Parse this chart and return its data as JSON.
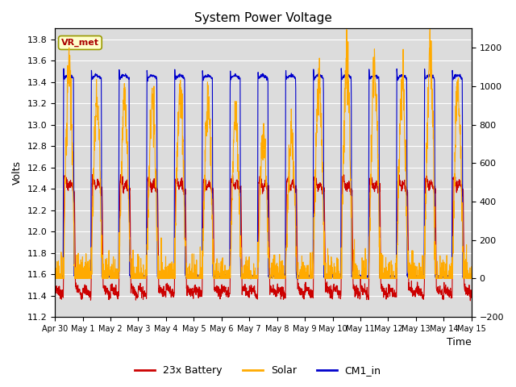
{
  "title": "System Power Voltage",
  "xlabel": "Time",
  "ylabel": "Volts",
  "ylim_left": [
    11.2,
    13.9
  ],
  "ylim_right": [
    -200,
    1300
  ],
  "yticks_left": [
    11.2,
    11.4,
    11.6,
    11.8,
    12.0,
    12.2,
    12.4,
    12.6,
    12.8,
    13.0,
    13.2,
    13.4,
    13.6,
    13.8
  ],
  "yticks_right": [
    -200,
    0,
    200,
    400,
    600,
    800,
    1000,
    1200
  ],
  "xtick_labels": [
    "Apr 30",
    "May 1",
    "May 2",
    "May 3",
    "May 4",
    "May 5",
    "May 6",
    "May 7",
    "May 8",
    "May 9",
    "May 10",
    "May 11",
    "May 12",
    "May 13",
    "May 14",
    "May 15"
  ],
  "battery_color": "#cc0000",
  "solar_color": "#ffaa00",
  "cm1_color": "#0000cc",
  "bg_inner": "#dcdcdc",
  "legend_labels": [
    "23x Battery",
    "Solar",
    "CM1_in"
  ],
  "annotation_text": "VR_met",
  "annotation_color": "#aa0000",
  "annotation_bg": "#ffffcc",
  "annotation_border": "#999900",
  "num_days": 15,
  "points_per_day": 144,
  "title_fontsize": 11,
  "axis_fontsize": 9,
  "tick_fontsize": 8
}
